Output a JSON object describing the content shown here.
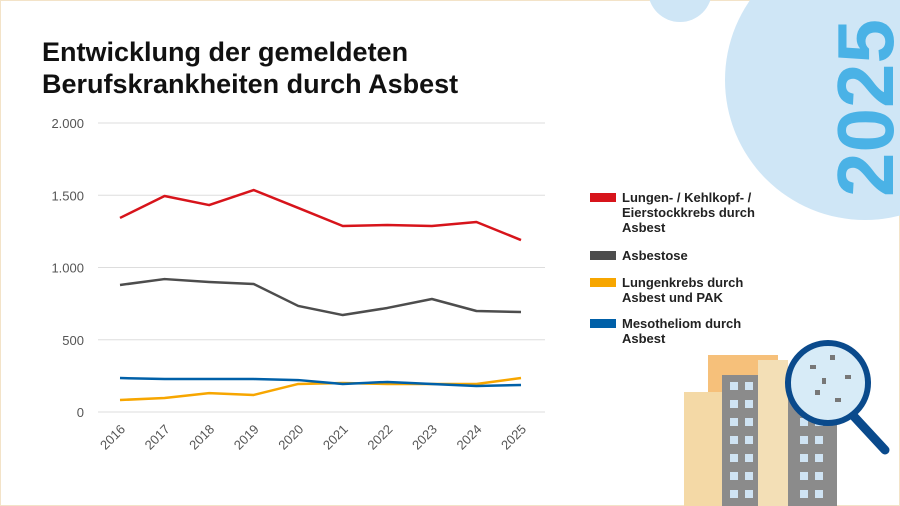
{
  "chart_data": {
    "type": "line",
    "title": "Entwicklung der gemeldeten Berufskrankheiten durch Asbest",
    "badge_text": "2025",
    "categories": [
      "2016",
      "2017",
      "2018",
      "2019",
      "2020",
      "2021",
      "2022",
      "2023",
      "2024",
      "2025"
    ],
    "series": [
      {
        "name": "Lungen- / Kehlkopf- / Eierstockkrebs durch Asbest",
        "color": "#d7141b",
        "values": [
          1343,
          1495,
          1432,
          1536,
          1412,
          1287,
          1294,
          1287,
          1315,
          1190
        ]
      },
      {
        "name": "Asbestose",
        "color": "#4d4d4d",
        "values": [
          879,
          920,
          900,
          886,
          734,
          671,
          720,
          782,
          699,
          692
        ]
      },
      {
        "name": "Lungenkrebs durch Asbest und PAK",
        "color": "#f7a600",
        "values": [
          83,
          97,
          131,
          118,
          194,
          201,
          194,
          194,
          194,
          235
        ]
      },
      {
        "name": "Mesotheliom durch Asbest",
        "color": "#0060a8",
        "values": [
          235,
          228,
          228,
          228,
          221,
          194,
          208,
          194,
          180,
          187
        ]
      }
    ],
    "ylim": [
      0,
      2000
    ],
    "yticks": [
      0,
      500,
      {
        "value": 1000,
        "label": "1.000"
      },
      {
        "value": 1500,
        "label": "1.500"
      },
      {
        "value": 2000,
        "label": "2.000"
      }
    ],
    "grid": true
  }
}
